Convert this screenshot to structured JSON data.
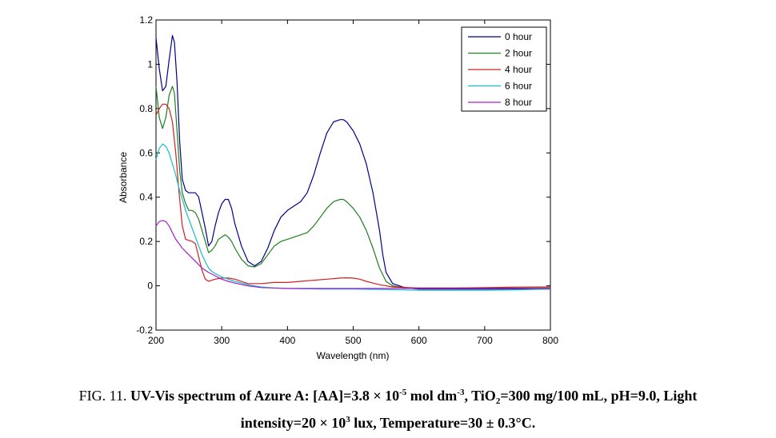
{
  "chart_data": {
    "type": "line",
    "xlabel": "Wavelength (nm)",
    "ylabel": "Absorbance",
    "xlim": [
      200,
      800
    ],
    "ylim": [
      -0.2,
      1.2
    ],
    "xticks": [
      "200",
      "300",
      "400",
      "500",
      "600",
      "700",
      "800"
    ],
    "yticks": [
      "-0.2",
      "0",
      "0.2",
      "0.4",
      "0.6",
      "0.8",
      "1",
      "1.2"
    ],
    "legend_position": "top-right",
    "series": [
      {
        "name": "0 hour",
        "color": "#00008b",
        "x": [
          200,
          205,
          210,
          215,
          220,
          225,
          228,
          232,
          236,
          240,
          245,
          250,
          255,
          260,
          265,
          270,
          275,
          280,
          285,
          290,
          295,
          300,
          305,
          310,
          315,
          320,
          330,
          340,
          350,
          360,
          370,
          380,
          390,
          400,
          410,
          420,
          430,
          440,
          450,
          460,
          470,
          480,
          485,
          490,
          500,
          510,
          520,
          530,
          540,
          545,
          550,
          560,
          580,
          600,
          650,
          700,
          750,
          800
        ],
        "y": [
          1.12,
          0.98,
          0.88,
          0.9,
          1.02,
          1.13,
          1.1,
          0.92,
          0.65,
          0.48,
          0.43,
          0.42,
          0.42,
          0.42,
          0.4,
          0.33,
          0.26,
          0.18,
          0.2,
          0.27,
          0.33,
          0.37,
          0.39,
          0.39,
          0.35,
          0.28,
          0.18,
          0.11,
          0.09,
          0.11,
          0.17,
          0.25,
          0.31,
          0.34,
          0.36,
          0.38,
          0.42,
          0.5,
          0.6,
          0.69,
          0.74,
          0.75,
          0.75,
          0.74,
          0.7,
          0.64,
          0.55,
          0.42,
          0.25,
          0.14,
          0.06,
          0.01,
          -0.01,
          -0.015,
          -0.015,
          -0.015,
          -0.015,
          -0.015
        ]
      },
      {
        "name": "2 hour",
        "color": "#1f7f1f",
        "x": [
          200,
          205,
          210,
          215,
          220,
          225,
          228,
          232,
          236,
          240,
          245,
          250,
          255,
          260,
          265,
          270,
          275,
          280,
          285,
          290,
          295,
          300,
          305,
          310,
          315,
          320,
          330,
          340,
          350,
          360,
          370,
          380,
          390,
          400,
          410,
          420,
          430,
          440,
          450,
          460,
          470,
          480,
          485,
          490,
          500,
          510,
          520,
          530,
          540,
          550,
          560,
          580,
          600,
          650,
          700,
          750,
          800
        ],
        "y": [
          0.9,
          0.76,
          0.71,
          0.76,
          0.86,
          0.9,
          0.87,
          0.7,
          0.52,
          0.42,
          0.37,
          0.34,
          0.34,
          0.33,
          0.3,
          0.25,
          0.2,
          0.15,
          0.16,
          0.18,
          0.21,
          0.22,
          0.23,
          0.22,
          0.2,
          0.17,
          0.12,
          0.09,
          0.085,
          0.1,
          0.14,
          0.18,
          0.2,
          0.21,
          0.22,
          0.23,
          0.24,
          0.27,
          0.31,
          0.35,
          0.38,
          0.39,
          0.39,
          0.38,
          0.35,
          0.31,
          0.25,
          0.17,
          0.08,
          0.02,
          0.0,
          -0.01,
          -0.01,
          -0.01,
          -0.01,
          -0.01,
          -0.01
        ]
      },
      {
        "name": "4 hour",
        "color": "#d02020",
        "x": [
          200,
          205,
          210,
          215,
          220,
          225,
          230,
          235,
          240,
          245,
          250,
          255,
          260,
          265,
          270,
          275,
          280,
          285,
          290,
          300,
          310,
          320,
          340,
          360,
          380,
          400,
          420,
          440,
          460,
          480,
          490,
          500,
          510,
          520,
          530,
          540,
          560,
          600,
          650,
          700,
          750,
          800
        ],
        "y": [
          0.77,
          0.8,
          0.82,
          0.82,
          0.8,
          0.74,
          0.6,
          0.42,
          0.27,
          0.21,
          0.205,
          0.2,
          0.19,
          0.13,
          0.07,
          0.03,
          0.02,
          0.025,
          0.03,
          0.035,
          0.035,
          0.03,
          0.01,
          0.01,
          0.015,
          0.015,
          0.02,
          0.025,
          0.03,
          0.035,
          0.036,
          0.035,
          0.03,
          0.02,
          0.012,
          0.005,
          -0.005,
          -0.01,
          -0.01,
          -0.008,
          -0.006,
          -0.005
        ]
      },
      {
        "name": "6 hour",
        "color": "#17bcc8",
        "x": [
          200,
          205,
          210,
          215,
          220,
          225,
          230,
          235,
          240,
          245,
          250,
          255,
          260,
          265,
          270,
          275,
          280,
          285,
          290,
          300,
          310,
          320,
          340,
          360,
          380,
          400,
          450,
          500,
          550,
          600,
          650,
          700,
          750,
          800
        ],
        "y": [
          0.57,
          0.62,
          0.64,
          0.63,
          0.6,
          0.55,
          0.5,
          0.44,
          0.39,
          0.34,
          0.3,
          0.26,
          0.22,
          0.18,
          0.14,
          0.11,
          0.08,
          0.065,
          0.055,
          0.04,
          0.03,
          0.02,
          0.005,
          -0.005,
          -0.01,
          -0.012,
          -0.015,
          -0.015,
          -0.017,
          -0.02,
          -0.02,
          -0.02,
          -0.018,
          -0.015
        ]
      },
      {
        "name": "8 hour",
        "color": "#a020c8",
        "x": [
          200,
          205,
          210,
          215,
          220,
          225,
          230,
          235,
          240,
          250,
          260,
          270,
          280,
          290,
          300,
          310,
          320,
          340,
          360,
          380,
          400,
          450,
          500,
          550,
          600,
          650,
          700,
          750,
          800
        ],
        "y": [
          0.27,
          0.29,
          0.295,
          0.29,
          0.27,
          0.24,
          0.21,
          0.19,
          0.17,
          0.14,
          0.11,
          0.08,
          0.06,
          0.045,
          0.03,
          0.02,
          0.012,
          0.0,
          -0.008,
          -0.01,
          -0.012,
          -0.012,
          -0.012,
          -0.012,
          -0.012,
          -0.012,
          -0.012,
          -0.012,
          -0.012
        ]
      }
    ]
  },
  "caption": {
    "prefix": "FIG. 11. ",
    "l1a": "UV-Vis spectrum of Azure A: [AA]=3.8 × 10",
    "l1b": "-5",
    "l1c": " mol dm",
    "l1d": "-3",
    "l1e": ", TiO",
    "l1f": "2",
    "l1g": "=300 mg/100 mL, pH=9.0, Light",
    "l2a": "intensity=20 × 10",
    "l2b": "3",
    "l2c": " lux, Temperature=30 ± 0.3°C."
  }
}
